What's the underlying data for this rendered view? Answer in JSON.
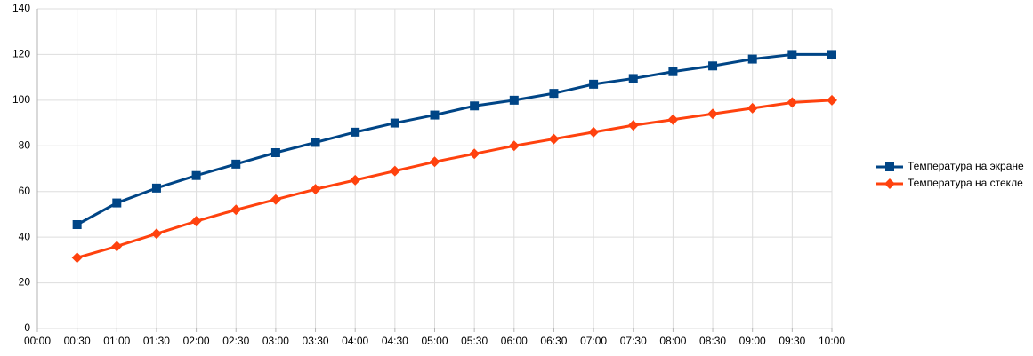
{
  "chart_data": {
    "type": "line",
    "categories": [
      "00:00",
      "00:30",
      "01:00",
      "01:30",
      "02:00",
      "02:30",
      "03:00",
      "03:30",
      "04:00",
      "04:30",
      "05:00",
      "05:30",
      "06:00",
      "06:30",
      "07:00",
      "07:30",
      "08:00",
      "08:30",
      "09:00",
      "09:30",
      "10:00"
    ],
    "series": [
      {
        "name": "Температура на экране",
        "color": "#004586",
        "marker": "square",
        "values": [
          null,
          45.5,
          55,
          61.5,
          67,
          72,
          77,
          81.5,
          86,
          90,
          93.5,
          97.5,
          100,
          103,
          107,
          109.5,
          112.5,
          115,
          118,
          120,
          120
        ]
      },
      {
        "name": "Температура на стекле",
        "color": "#ff420e",
        "marker": "diamond",
        "values": [
          null,
          31,
          36,
          41.5,
          47,
          52,
          56.5,
          61,
          65,
          69,
          73,
          76.5,
          80,
          83,
          86,
          89,
          91.5,
          94,
          96.5,
          99,
          100
        ]
      }
    ],
    "ylim": [
      0,
      140
    ],
    "yticks": [
      0,
      20,
      40,
      60,
      80,
      100,
      120,
      140
    ],
    "grid": true,
    "legend": "right"
  }
}
